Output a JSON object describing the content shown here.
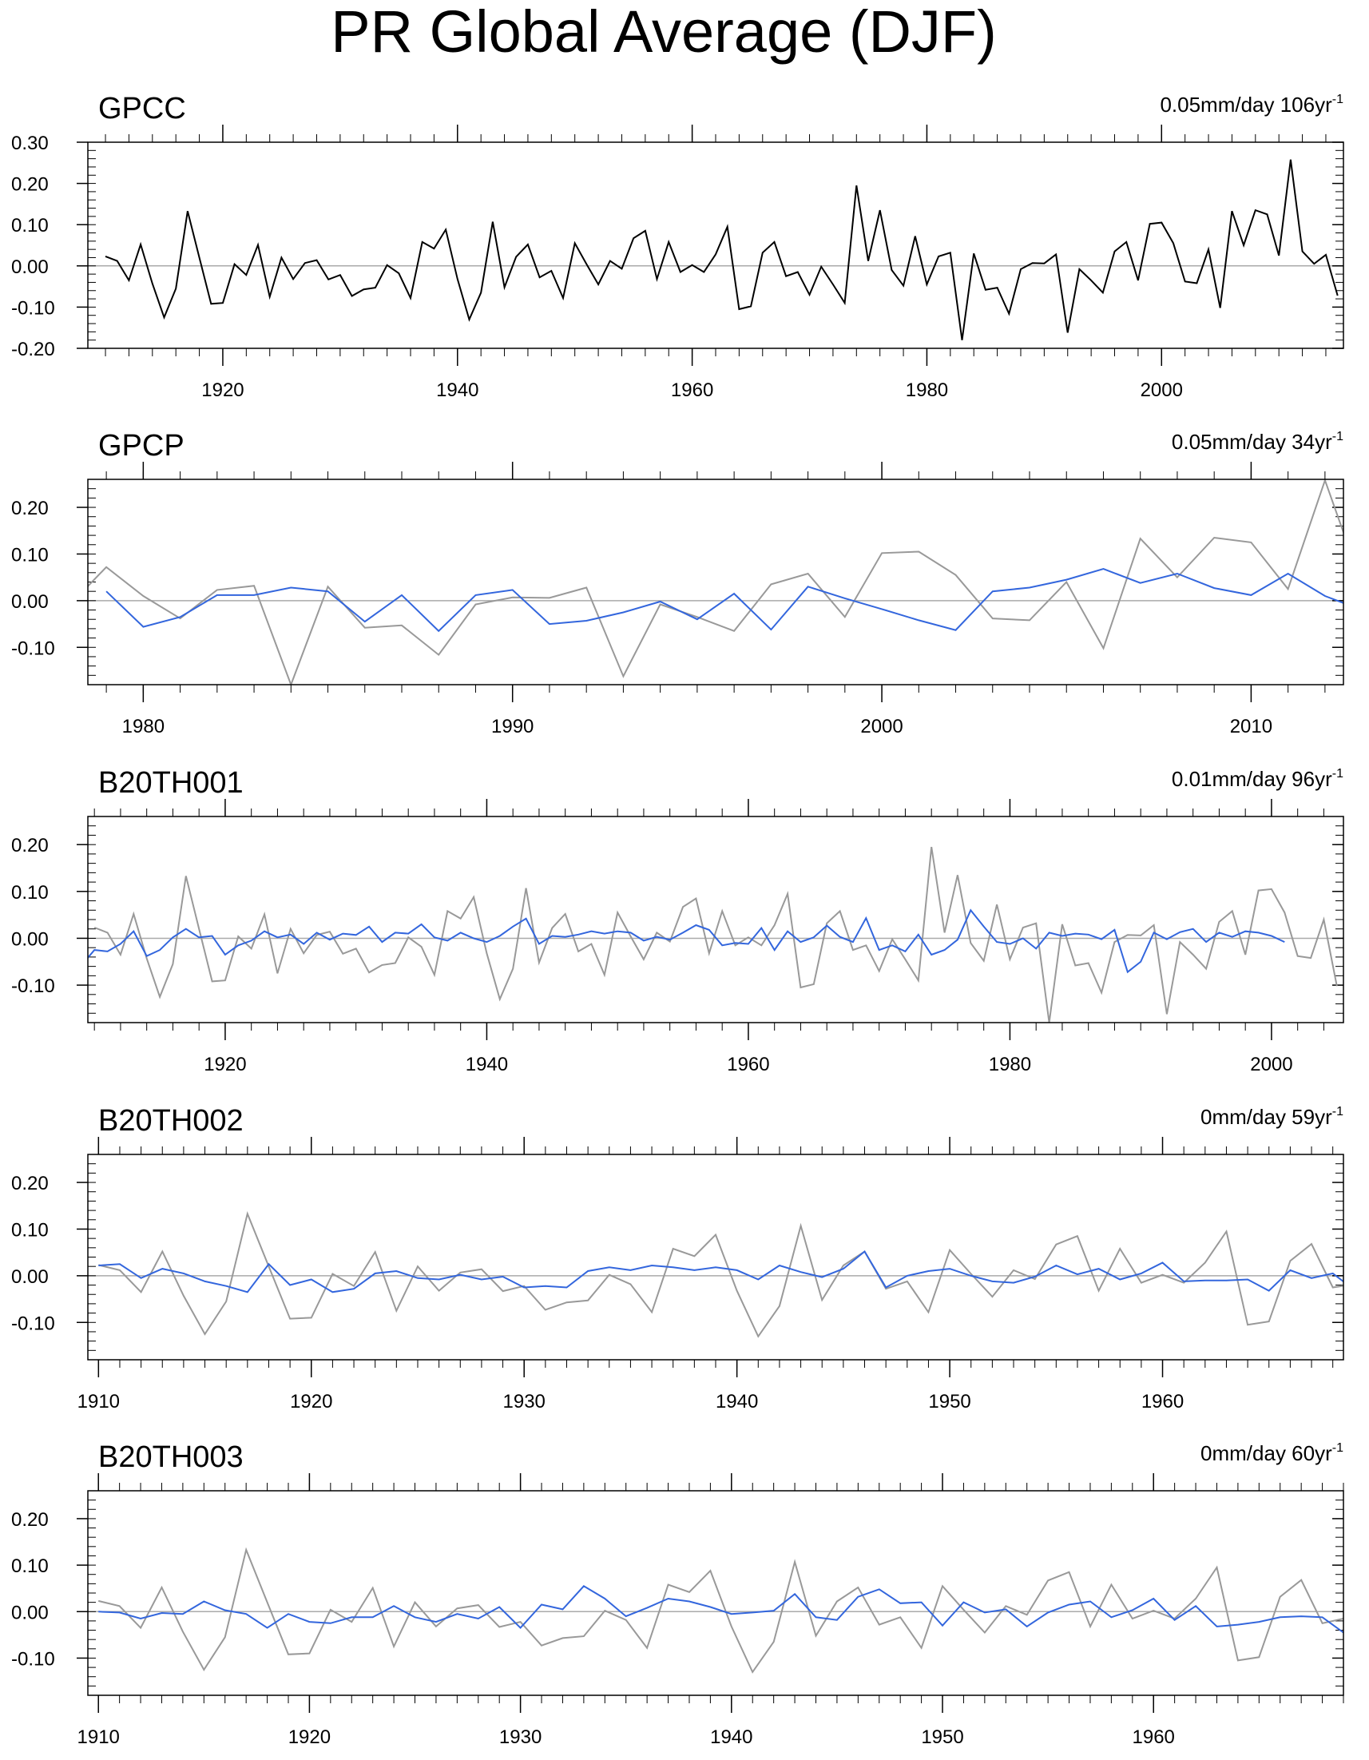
{
  "title": "PR Global Average (DJF)",
  "colors": {
    "obs": "#000000",
    "obs_ref": "#999999",
    "model": "#3366dd",
    "zero": "#aaaaaa",
    "axis": "#000000"
  },
  "chart_data": [
    {
      "type": "line",
      "title": "GPCC",
      "info": {
        "value": "0.05mm/day",
        "years": "106yr",
        "sup": "-1"
      },
      "xlim": [
        1908.5,
        2015.5
      ],
      "ylim": [
        -0.2,
        0.3
      ],
      "yticks": [
        -0.2,
        -0.1,
        0.0,
        0.1,
        0.2,
        0.3
      ],
      "ytick_labels": [
        "-0.20",
        "-0.10",
        "0.00",
        "0.10",
        "0.20",
        "0.30"
      ],
      "xticks": [
        1920,
        1940,
        1960,
        1980,
        2000
      ],
      "xtick_labels": [
        "1920",
        "1940",
        "1960",
        "1980",
        "2000"
      ],
      "minor_x_step": 2,
      "series": [
        {
          "name": "GPCC",
          "role": "obs",
          "x_start": 1910,
          "values": [
            0.023,
            0.012,
            -0.035,
            0.052,
            -0.043,
            -0.125,
            -0.055,
            0.133,
            0.02,
            -0.092,
            -0.09,
            0.004,
            -0.022,
            0.051,
            -0.075,
            0.02,
            -0.032,
            0.007,
            0.014,
            -0.033,
            -0.022,
            -0.073,
            -0.057,
            -0.053,
            0.002,
            -0.018,
            -0.078,
            0.058,
            0.042,
            0.088,
            -0.032,
            -0.13,
            -0.065,
            0.107,
            -0.052,
            0.022,
            0.052,
            -0.028,
            -0.012,
            -0.078,
            0.055,
            0.004,
            -0.045,
            0.012,
            -0.007,
            0.067,
            0.085,
            -0.032,
            0.058,
            -0.015,
            0.002,
            -0.015,
            0.028,
            0.095,
            -0.105,
            -0.098,
            0.032,
            0.058,
            -0.025,
            -0.015,
            -0.07,
            -0.002,
            -0.045,
            -0.09,
            0.195,
            0.012,
            0.135,
            -0.01,
            -0.048,
            0.072,
            -0.045,
            0.023,
            0.032,
            -0.18,
            0.03,
            -0.058,
            -0.053,
            -0.116,
            -0.008,
            0.007,
            0.006,
            0.028,
            -0.162,
            -0.008,
            -0.035,
            -0.065,
            0.035,
            0.058,
            -0.035,
            0.102,
            0.105,
            0.055,
            -0.038,
            -0.042,
            0.04,
            -0.102,
            0.133,
            0.05,
            0.135,
            0.125,
            0.025,
            0.258,
            0.035,
            0.005,
            0.027,
            -0.072
          ]
        }
      ]
    },
    {
      "type": "line",
      "title": "GPCP",
      "info": {
        "value": "0.05mm/day",
        "years": "34yr",
        "sup": "-1"
      },
      "xlim": [
        1978.5,
        2012.5
      ],
      "ylim": [
        -0.18,
        0.26
      ],
      "yticks": [
        -0.1,
        0.0,
        0.1,
        0.2
      ],
      "ytick_labels": [
        "-0.10",
        "0.00",
        "0.10",
        "0.20"
      ],
      "xticks": [
        1980,
        1990,
        2000,
        2010
      ],
      "xtick_labels": [
        "1980",
        "1990",
        "2000",
        "2010"
      ],
      "minor_x_step": 1,
      "series": [
        {
          "name": "GPCC",
          "role": "obs_ref",
          "x_start": 1978,
          "values": [
            -0.01,
            0.072,
            0.01,
            -0.038,
            0.023,
            0.032,
            -0.18,
            0.03,
            -0.058,
            -0.053,
            -0.116,
            -0.008,
            0.007,
            0.006,
            0.028,
            -0.162,
            -0.008,
            -0.035,
            -0.065,
            0.035,
            0.058,
            -0.035,
            0.102,
            0.105,
            0.055,
            -0.038,
            -0.042,
            0.04,
            -0.102,
            0.133,
            0.05,
            0.135,
            0.125,
            0.025,
            0.258,
            0.035,
            0.02
          ]
        },
        {
          "name": "GPCP",
          "role": "model",
          "x_start": 1979,
          "values": [
            0.02,
            -0.056,
            -0.035,
            0.012,
            0.012,
            0.028,
            0.02,
            -0.045,
            0.012,
            -0.065,
            0.012,
            0.023,
            -0.05,
            -0.043,
            -0.025,
            -0.002,
            -0.04,
            0.015,
            -0.062,
            0.03,
            0.005,
            -0.018,
            -0.042,
            -0.063,
            0.02,
            0.028,
            0.045,
            0.068,
            0.038,
            0.058,
            0.027,
            0.012,
            0.058,
            0.01,
            -0.02
          ]
        }
      ]
    },
    {
      "type": "line",
      "title": "B20TH001",
      "info": {
        "value": "0.01mm/day",
        "years": "96yr",
        "sup": "-1"
      },
      "xlim": [
        1909.5,
        2005.5
      ],
      "ylim": [
        -0.18,
        0.26
      ],
      "yticks": [
        -0.1,
        0.0,
        0.1,
        0.2
      ],
      "ytick_labels": [
        "-0.10",
        "0.00",
        "0.10",
        "0.20"
      ],
      "xticks": [
        1920,
        1940,
        1960,
        1980,
        2000
      ],
      "xtick_labels": [
        "1920",
        "1940",
        "1960",
        "1980",
        "2000"
      ],
      "minor_x_step": 2,
      "series": [
        {
          "name": "GPCC",
          "role": "obs_ref",
          "x_start": 1910,
          "values": [
            0.023,
            0.012,
            -0.035,
            0.052,
            -0.043,
            -0.125,
            -0.055,
            0.133,
            0.02,
            -0.092,
            -0.09,
            0.004,
            -0.022,
            0.051,
            -0.075,
            0.02,
            -0.032,
            0.007,
            0.014,
            -0.033,
            -0.022,
            -0.073,
            -0.057,
            -0.053,
            0.002,
            -0.018,
            -0.078,
            0.058,
            0.042,
            0.088,
            -0.032,
            -0.13,
            -0.065,
            0.107,
            -0.052,
            0.022,
            0.052,
            -0.028,
            -0.012,
            -0.078,
            0.055,
            0.004,
            -0.045,
            0.012,
            -0.007,
            0.067,
            0.085,
            -0.032,
            0.058,
            -0.015,
            0.002,
            -0.015,
            0.028,
            0.095,
            -0.105,
            -0.098,
            0.032,
            0.058,
            -0.025,
            -0.015,
            -0.07,
            -0.002,
            -0.045,
            -0.09,
            0.195,
            0.012,
            0.135,
            -0.01,
            -0.048,
            0.072,
            -0.045,
            0.023,
            0.032,
            -0.18,
            0.03,
            -0.058,
            -0.053,
            -0.116,
            -0.008,
            0.007,
            0.006,
            0.028,
            -0.162,
            -0.008,
            -0.035,
            -0.065,
            0.035,
            0.058,
            -0.035,
            0.102,
            0.105,
            0.055,
            -0.038,
            -0.042,
            0.04,
            -0.102
          ]
        },
        {
          "name": "B20TH001",
          "role": "model",
          "x_start": 1909,
          "values": [
            -0.058,
            -0.025,
            -0.028,
            -0.012,
            0.015,
            -0.038,
            -0.025,
            0.002,
            0.02,
            0.002,
            0.005,
            -0.035,
            -0.015,
            -0.005,
            0.015,
            0.002,
            0.008,
            -0.012,
            0.012,
            -0.003,
            0.01,
            0.007,
            0.025,
            -0.008,
            0.012,
            0.01,
            0.03,
            0.002,
            -0.005,
            0.012,
            0.0,
            -0.008,
            0.005,
            0.025,
            0.042,
            -0.012,
            0.005,
            0.003,
            0.008,
            0.015,
            0.01,
            0.015,
            0.012,
            -0.005,
            0.003,
            -0.003,
            0.012,
            0.028,
            0.018,
            -0.015,
            -0.01,
            -0.012,
            0.022,
            -0.025,
            0.015,
            -0.008,
            0.002,
            0.027,
            0.003,
            -0.008,
            0.043,
            -0.025,
            -0.015,
            -0.028,
            0.008,
            -0.035,
            -0.025,
            -0.003,
            0.06,
            0.025,
            -0.008,
            -0.012,
            0.0,
            -0.022,
            0.012,
            0.005,
            0.01,
            0.008,
            -0.002,
            0.018,
            -0.072,
            -0.05,
            0.012,
            -0.002,
            0.013,
            0.02,
            -0.008,
            0.012,
            0.003,
            0.015,
            0.012,
            0.005,
            -0.008
          ]
        }
      ]
    },
    {
      "type": "line",
      "title": "B20TH002",
      "info": {
        "value": "0mm/day",
        "years": "59yr",
        "sup": "-1"
      },
      "xlim": [
        1909.5,
        1968.5
      ],
      "ylim": [
        -0.18,
        0.26
      ],
      "yticks": [
        -0.1,
        0.0,
        0.1,
        0.2
      ],
      "ytick_labels": [
        "-0.10",
        "0.00",
        "0.10",
        "0.20"
      ],
      "xticks": [
        1910,
        1920,
        1930,
        1940,
        1950,
        1960
      ],
      "xtick_labels": [
        "1910",
        "1920",
        "1930",
        "1940",
        "1950",
        "1960"
      ],
      "minor_x_step": 1,
      "series": [
        {
          "name": "GPCC",
          "role": "obs_ref",
          "x_start": 1910,
          "values": [
            0.023,
            0.012,
            -0.035,
            0.052,
            -0.043,
            -0.125,
            -0.055,
            0.133,
            0.02,
            -0.092,
            -0.09,
            0.004,
            -0.022,
            0.051,
            -0.075,
            0.02,
            -0.032,
            0.007,
            0.014,
            -0.033,
            -0.022,
            -0.073,
            -0.057,
            -0.053,
            0.002,
            -0.018,
            -0.078,
            0.058,
            0.042,
            0.088,
            -0.032,
            -0.13,
            -0.065,
            0.107,
            -0.052,
            0.022,
            0.052,
            -0.028,
            -0.012,
            -0.078,
            0.055,
            0.004,
            -0.045,
            0.012,
            -0.007,
            0.067,
            0.085,
            -0.032,
            0.058,
            -0.015,
            0.002,
            -0.015,
            0.028,
            0.095,
            -0.105,
            -0.098,
            0.032,
            0.068,
            -0.025,
            -0.018
          ]
        },
        {
          "name": "B20TH002",
          "role": "model",
          "x_start": 1910,
          "values": [
            0.022,
            0.025,
            -0.005,
            0.015,
            0.005,
            -0.012,
            -0.022,
            -0.035,
            0.025,
            -0.02,
            -0.008,
            -0.035,
            -0.028,
            0.005,
            0.01,
            -0.005,
            -0.008,
            0.002,
            -0.008,
            -0.002,
            -0.025,
            -0.022,
            -0.025,
            0.01,
            0.018,
            0.012,
            0.022,
            0.018,
            0.012,
            0.018,
            0.012,
            -0.008,
            0.022,
            0.008,
            -0.003,
            0.015,
            0.052,
            -0.025,
            0.0,
            0.01,
            0.015,
            0.0,
            -0.012,
            -0.015,
            -0.002,
            0.022,
            0.003,
            0.015,
            -0.008,
            0.005,
            0.028,
            -0.012,
            -0.01,
            -0.01,
            -0.008,
            -0.032,
            0.012,
            -0.005,
            0.005,
            -0.03
          ]
        }
      ]
    },
    {
      "type": "line",
      "title": "B20TH003",
      "info": {
        "value": "0mm/day",
        "years": "60yr",
        "sup": "-1"
      },
      "xlim": [
        1909.5,
        1969.0
      ],
      "ylim": [
        -0.18,
        0.26
      ],
      "yticks": [
        -0.1,
        0.0,
        0.1,
        0.2
      ],
      "ytick_labels": [
        "-0.10",
        "0.00",
        "0.10",
        "0.20"
      ],
      "xticks": [
        1910,
        1920,
        1930,
        1940,
        1950,
        1960
      ],
      "xtick_labels": [
        "1910",
        "1920",
        "1930",
        "1940",
        "1950",
        "1960"
      ],
      "minor_x_step": 1,
      "series": [
        {
          "name": "GPCC",
          "role": "obs_ref",
          "x_start": 1910,
          "values": [
            0.023,
            0.012,
            -0.035,
            0.052,
            -0.043,
            -0.125,
            -0.055,
            0.133,
            0.02,
            -0.092,
            -0.09,
            0.004,
            -0.022,
            0.051,
            -0.075,
            0.02,
            -0.032,
            0.007,
            0.014,
            -0.033,
            -0.022,
            -0.073,
            -0.057,
            -0.053,
            0.002,
            -0.018,
            -0.078,
            0.058,
            0.042,
            0.088,
            -0.032,
            -0.13,
            -0.065,
            0.107,
            -0.052,
            0.022,
            0.052,
            -0.028,
            -0.012,
            -0.078,
            0.055,
            0.004,
            -0.045,
            0.012,
            -0.007,
            0.067,
            0.085,
            -0.032,
            0.058,
            -0.015,
            0.002,
            -0.015,
            0.028,
            0.095,
            -0.105,
            -0.098,
            0.032,
            0.068,
            -0.025,
            -0.015,
            -0.04
          ]
        },
        {
          "name": "B20TH003",
          "role": "model",
          "x_start": 1910,
          "values": [
            0.0,
            -0.002,
            -0.015,
            -0.003,
            -0.005,
            0.022,
            0.003,
            -0.005,
            -0.035,
            -0.005,
            -0.022,
            -0.025,
            -0.012,
            -0.012,
            0.012,
            -0.012,
            -0.022,
            -0.005,
            -0.015,
            0.01,
            -0.035,
            0.015,
            0.005,
            0.055,
            0.028,
            -0.01,
            0.008,
            0.028,
            0.022,
            0.01,
            -0.005,
            -0.002,
            0.002,
            0.038,
            -0.012,
            -0.018,
            0.032,
            0.048,
            0.018,
            0.02,
            -0.03,
            0.02,
            -0.002,
            0.005,
            -0.032,
            -0.002,
            0.015,
            0.022,
            -0.012,
            0.003,
            0.028,
            -0.018,
            0.012,
            -0.032,
            -0.028,
            -0.022,
            -0.012,
            -0.01,
            -0.012,
            -0.045
          ]
        }
      ]
    }
  ]
}
